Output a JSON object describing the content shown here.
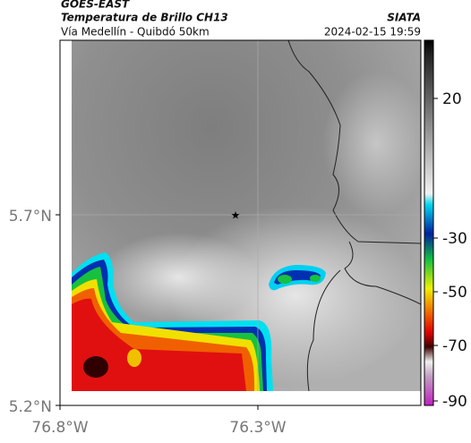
{
  "header": {
    "satellite": "GOES-EAST",
    "product": "Temperatura de Brillo CH13",
    "route": "Vía Medellín - Quibdó 50km",
    "source": "SIATA",
    "timestamp": "2024-02-15 19:59"
  },
  "map": {
    "lat_labels": [
      "5.7°N",
      "5.2°N"
    ],
    "lon_labels": [
      "76.8°W",
      "76.3°W"
    ]
  },
  "colorbar": {
    "ticks": [
      20,
      -30,
      -50,
      -70,
      -90
    ]
  }
}
